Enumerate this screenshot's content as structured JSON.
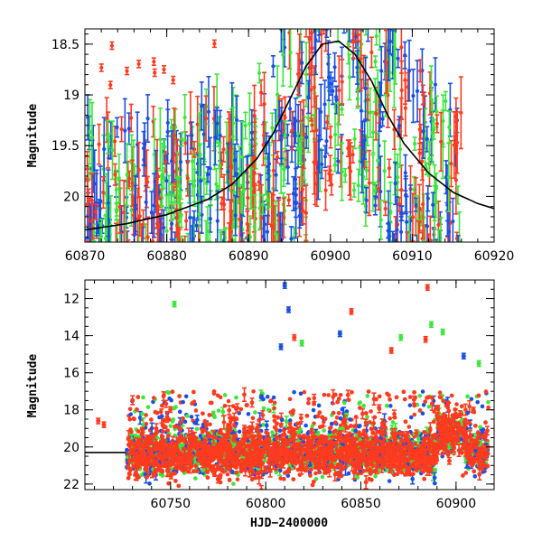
{
  "chart_data": [
    {
      "type": "scatter",
      "panel": "top",
      "ylabel": "Magnitude",
      "xlabel": "",
      "xlim": [
        60870,
        60920
      ],
      "ylim": [
        20.45,
        18.35
      ],
      "y_inverted": true,
      "xticks": [
        "60870",
        "60880",
        "60890",
        "60900",
        "60910",
        "60920"
      ],
      "yticks": [
        "18.5",
        "19",
        "19.5",
        "20"
      ],
      "series_colors": [
        "#ff3b1f",
        "#1a4fe6",
        "#3ce63c"
      ],
      "model_curve": {
        "color": "#000000",
        "x": [
          60870,
          60875,
          60880,
          60885,
          60888,
          60891,
          60893,
          60895,
          60897,
          60899,
          60901,
          60903,
          60905,
          60907,
          60909,
          60912,
          60915,
          60918,
          60920
        ],
        "y": [
          20.33,
          20.27,
          20.18,
          20.03,
          19.88,
          19.63,
          19.38,
          19.05,
          18.72,
          18.5,
          18.47,
          18.6,
          18.86,
          19.2,
          19.48,
          19.77,
          19.96,
          20.07,
          20.12
        ]
      }
    },
    {
      "type": "scatter",
      "panel": "bottom",
      "ylabel": "Magnitude",
      "xlabel": "HJD−2400000",
      "xlim": [
        60705,
        60920
      ],
      "ylim": [
        22.3,
        11
      ],
      "y_inverted": true,
      "xticks": [
        "60750",
        "60800",
        "60850",
        "60900"
      ],
      "yticks": [
        "12",
        "14",
        "16",
        "18",
        "20",
        "22"
      ],
      "series_colors": [
        "#ff3b1f",
        "#1a4fe6",
        "#3ce63c"
      ],
      "quiescent_level": 20.3,
      "notable_points": [
        {
          "x": 60712,
          "y": 18.6,
          "color": "#ff3b1f"
        },
        {
          "x": 60715,
          "y": 18.8,
          "color": "#ff3b1f"
        },
        {
          "x": 60752,
          "y": 12.3,
          "color": "#3ce63c"
        },
        {
          "x": 60810,
          "y": 11.3,
          "color": "#1a4fe6"
        },
        {
          "x": 60812,
          "y": 12.6,
          "color": "#1a4fe6"
        },
        {
          "x": 60808,
          "y": 14.6,
          "color": "#1a4fe6"
        },
        {
          "x": 60815,
          "y": 14.1,
          "color": "#ff3b1f"
        },
        {
          "x": 60819,
          "y": 14.4,
          "color": "#3ce63c"
        },
        {
          "x": 60845,
          "y": 12.7,
          "color": "#ff3b1f"
        },
        {
          "x": 60839,
          "y": 13.9,
          "color": "#1a4fe6"
        },
        {
          "x": 60885,
          "y": 11.4,
          "color": "#ff3b1f"
        },
        {
          "x": 60887,
          "y": 13.4,
          "color": "#3ce63c"
        },
        {
          "x": 60884,
          "y": 14.2,
          "color": "#ff3b1f"
        },
        {
          "x": 60893,
          "y": 13.8,
          "color": "#3ce63c"
        },
        {
          "x": 60871,
          "y": 14.1,
          "color": "#3ce63c"
        },
        {
          "x": 60866,
          "y": 14.8,
          "color": "#ff3b1f"
        },
        {
          "x": 60904,
          "y": 15.1,
          "color": "#1a4fe6"
        },
        {
          "x": 60912,
          "y": 15.5,
          "color": "#3ce63c"
        }
      ]
    }
  ]
}
